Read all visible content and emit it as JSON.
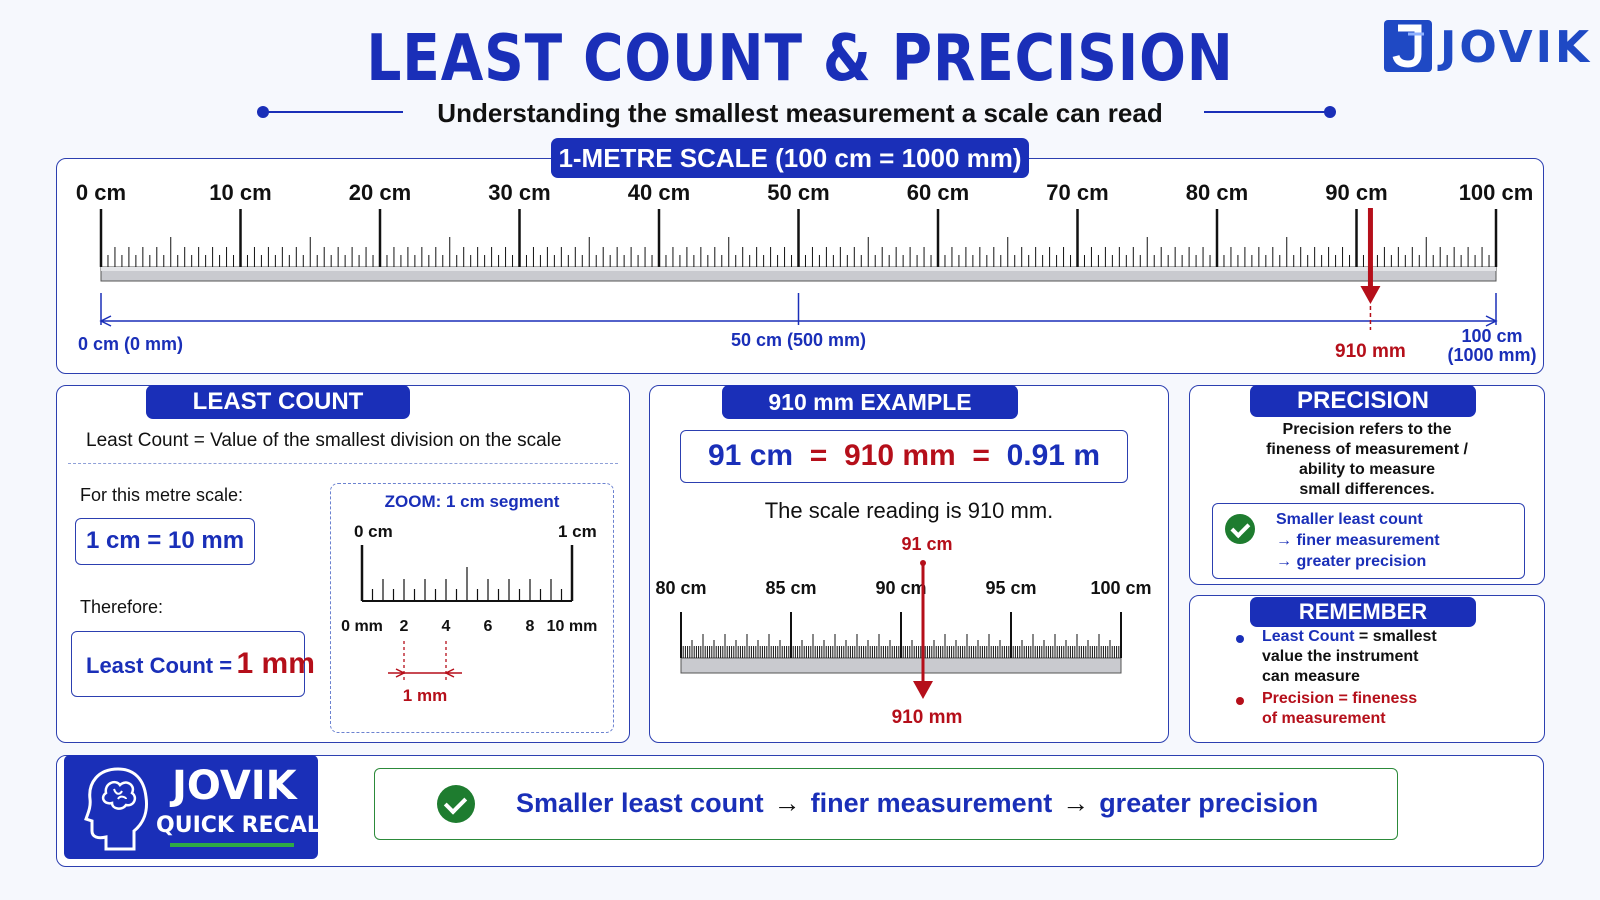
{
  "header": {
    "title": "LEAST COUNT & PRECISION",
    "subtitle": "Understanding the smallest measurement a scale can read",
    "logo_text": "JOVIK"
  },
  "colors": {
    "primary_blue": "#1a2fb8",
    "accent_red": "#b50f1a",
    "check_green": "#1e7c2f"
  },
  "scale_panel": {
    "tab": "1-METRE SCALE (100 cm = 1000 mm)",
    "major_labels": [
      "0 cm",
      "10 cm",
      "20 cm",
      "30 cm",
      "40 cm",
      "50 cm",
      "60 cm",
      "70 cm",
      "80 cm",
      "90 cm",
      "100 cm"
    ],
    "start_label": "0 cm (0 mm)",
    "mid_label": "50 cm (500 mm)",
    "end_label_1": "100 cm",
    "end_label_2": "(1000 mm)",
    "marker_label": "910 mm",
    "marker_value_cm": 91
  },
  "least_count": {
    "tab": "LEAST COUNT",
    "definition": "Least Count = Value of the smallest division on the scale",
    "for_scale": "For this metre scale:",
    "conversion": "1 cm = 10 mm",
    "therefore": "Therefore:",
    "result_label": "Least Count =",
    "result_value": "1 mm",
    "zoom": {
      "title": "ZOOM: 1 cm segment",
      "left_cm": "0 cm",
      "right_cm": "1 cm",
      "mm_labels": [
        "0 mm",
        "2",
        "4",
        "6",
        "8",
        "10 mm"
      ],
      "gap_label": "1 mm"
    }
  },
  "example": {
    "tab": "910 mm EXAMPLE",
    "eq_cm": "91 cm",
    "eq_mm": "910 mm",
    "eq_m": "0.91 m",
    "reading": "The scale reading is 910 mm.",
    "top_marker": "91 cm",
    "bottom_marker": "910 mm",
    "labels": [
      "80 cm",
      "85 cm",
      "90 cm",
      "95 cm",
      "100 cm"
    ]
  },
  "precision": {
    "tab": "PRECISION",
    "definition_lines": [
      "Precision refers to the",
      "fineness of measurement /",
      "ability to measure",
      "small differences."
    ],
    "points": [
      "Smaller least count",
      "→ finer measurement",
      "→ greater precision"
    ]
  },
  "remember": {
    "tab": "REMEMBER",
    "item1_lead": "Least Count",
    "item1_rest": " = smallest",
    "item1_lines": [
      "value the instrument",
      "can measure"
    ],
    "item2_lines": [
      "Precision = fineness",
      "of measurement"
    ]
  },
  "quick_recall": {
    "brand": "JOVIK",
    "sub": "QUICK RECALL",
    "part1": "Smaller least count",
    "part2": "finer measurement",
    "part3": "greater precision",
    "arrow": "→"
  }
}
